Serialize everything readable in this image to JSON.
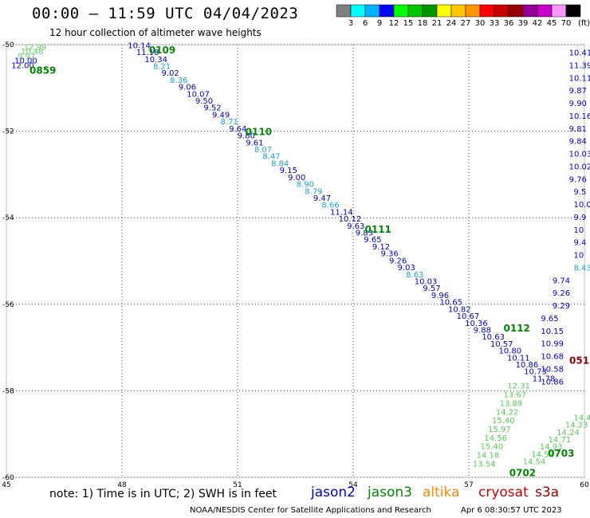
{
  "header": {
    "title": "00:00 – 11:59 UTC 04/04/2023",
    "subtitle": "12 hour collection of altimeter wave heights"
  },
  "colorbar": {
    "unit_label": "(ft)",
    "colors": [
      "#808080",
      "#00ffff",
      "#00b4ff",
      "#0000ff",
      "#00ff00",
      "#00c800",
      "#009600",
      "#ffff00",
      "#ffc800",
      "#ff9600",
      "#ff0000",
      "#c80000",
      "#960000",
      "#960096",
      "#c800c8",
      "#ff96ff",
      "#000000"
    ],
    "labels": [
      "3",
      "6",
      "9",
      "12",
      "15",
      "18",
      "21",
      "24",
      "27",
      "30",
      "33",
      "36",
      "39",
      "42",
      "45",
      "70"
    ]
  },
  "map": {
    "lon_ticks": [
      45,
      48,
      51,
      54,
      57,
      60
    ],
    "lat_ticks": [
      -50,
      -52,
      -54,
      -56,
      -58,
      -60
    ],
    "lon_range": [
      45,
      60
    ],
    "lat_range": [
      -50,
      -60
    ],
    "grid": true
  },
  "colors": {
    "jason2": "#0000cc",
    "jason3": "#008800",
    "altika": "#ff8800",
    "cryosat": "#cc0000",
    "s3a": "#990000",
    "time_label": "#008800",
    "time_label_red": "#8b0000"
  },
  "passes": [
    {
      "lon": 45.35,
      "lat_start": -50.12,
      "lat_step": 0.105,
      "color": "#66cc66",
      "values": [
        "12.99",
        "10.48",
        "9.97",
        "10.00",
        "12.00"
      ]
    },
    {
      "lon": 48.15,
      "lat_start": -50.08,
      "lat_step": 0.198,
      "color": "mixed",
      "values": [
        "10.14",
        "11.18",
        "10.34",
        "8.21",
        "9.02",
        "8.36",
        "9.06",
        "10.07",
        "9.50",
        "9.52",
        "9.49",
        "8.71",
        "9.64",
        "9.80",
        "9.61",
        "8.07",
        "8.47",
        "8.84",
        "9.15",
        "9.00",
        "8.90",
        "8.79",
        "9.47",
        "8.66",
        "11.14",
        "10.12",
        "9.63",
        "9.83",
        "9.65",
        "9.12",
        "9.36",
        "9.26",
        "9.03",
        "8.63",
        "10.03",
        "9.57",
        "9.96",
        "10.65",
        "10.82",
        "10.67",
        "10.36",
        "9.88",
        "10.63",
        "10.57",
        "10.80",
        "10.11",
        "10.86",
        "10.73",
        "11.78"
      ]
    },
    {
      "lon": 59.6,
      "lat_start": -50.25,
      "lat_step": 0.2,
      "color": "#0000cc",
      "values": [
        "10.41",
        "11.39",
        "10.11",
        "9.87",
        "9.90",
        "10.16",
        "9.81",
        "9.84",
        "10.03",
        "10.02",
        "9.76",
        "9.5",
        "10.0",
        "9.9",
        "10",
        "9.4",
        "10",
        "8.43",
        "9.74",
        "9.26",
        "9.29",
        "9.65",
        "10.15",
        "10.99",
        "10.68",
        "10.58",
        "10.86"
      ]
    },
    {
      "lon": 58.0,
      "lat_start": -57.95,
      "lat_step": 0.28,
      "color": "#66cc66",
      "values": [
        "12.31",
        "13.67",
        "13.89",
        "14.22",
        "15.40",
        "15.97",
        "14.56",
        "15.40",
        "14.18",
        "13.54"
      ]
    },
    {
      "lon": 58.4,
      "lat_start": -59.7,
      "lat_step": -0.17,
      "color": "#66cc66",
      "values": [
        "14.54",
        "14.53",
        "14.93",
        "14.71",
        "14.24",
        "14.23",
        "14.4"
      ]
    }
  ],
  "time_labels": [
    {
      "text": "0109",
      "lon": 48.7,
      "lat": -50.13,
      "color": "#008800"
    },
    {
      "text": "0859",
      "lon": 45.6,
      "lat": -50.6,
      "color": "#008800"
    },
    {
      "text": "0110",
      "lon": 51.2,
      "lat": -52.02,
      "color": "#008800"
    },
    {
      "text": "0111",
      "lon": 54.3,
      "lat": -54.27,
      "color": "#008800"
    },
    {
      "text": "0112",
      "lon": 57.9,
      "lat": -56.56,
      "color": "#008800"
    },
    {
      "text": "0703",
      "lon": 59.05,
      "lat": -59.45,
      "color": "#008800"
    },
    {
      "text": "0702",
      "lon": 58.05,
      "lat": -59.9,
      "color": "#008800"
    },
    {
      "text": "051",
      "lon": 59.72,
      "lat": -57.3,
      "color": "#8b0000"
    }
  ],
  "footer": {
    "note": "note: 1) Time is in UTC; 2) SWH is in feet",
    "credit": "NOAA/NESDIS Center for Satellite Applications and Research",
    "generated": "Apr  6 08:30:57 UTC 2023"
  },
  "satellites": [
    {
      "name": "jason2",
      "color": "#0000cc"
    },
    {
      "name": "jason3",
      "color": "#008800"
    },
    {
      "name": "altika",
      "color": "#ff8800"
    },
    {
      "name": "cryosat",
      "color": "#cc0000"
    },
    {
      "name": "s3a",
      "color": "#990000"
    }
  ]
}
